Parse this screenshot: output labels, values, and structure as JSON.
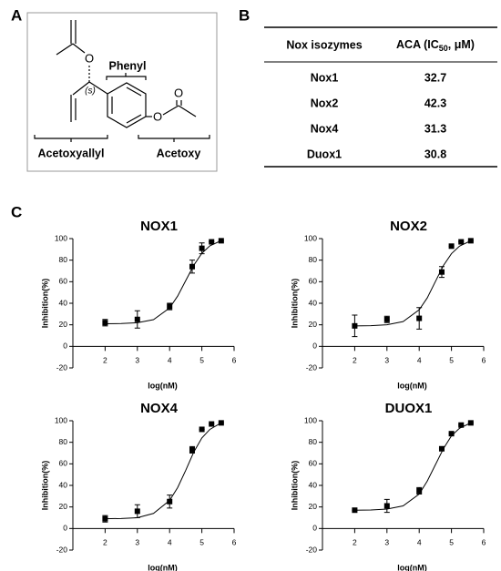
{
  "panels": [
    "A",
    "B",
    "C"
  ],
  "structure": {
    "atoms": [
      "O",
      "O",
      "O"
    ],
    "stereo": "(s)",
    "groups": [
      "Phenyl",
      "Acetoxyallyl",
      "Acetoxy"
    ]
  },
  "table": {
    "columns": [
      "Nox isozymes",
      [
        "ACA (IC",
        "50",
        ", μM)"
      ]
    ],
    "rows": [
      [
        "Nox1",
        32.7
      ],
      [
        "Nox2",
        42.3
      ],
      [
        "Nox4",
        31.3
      ],
      [
        "Duox1",
        30.8
      ]
    ]
  },
  "chart_data": [
    {
      "type": "scatter",
      "title": "NOX1",
      "xlabel": "log(nM)",
      "ylabel": "Inhibition(%)",
      "xlim": [
        1,
        6
      ],
      "ylim": [
        -20,
        100
      ],
      "xticks": [
        2,
        3,
        4,
        5,
        6
      ],
      "yticks": [
        -20,
        0,
        20,
        40,
        60,
        80,
        100
      ],
      "color": "#000000",
      "series": [
        {
          "x": [
            2,
            3,
            4,
            4.7,
            5,
            5.3,
            5.6
          ],
          "values": [
            22,
            25,
            37,
            74,
            91,
            97,
            98
          ],
          "errors": [
            3,
            8,
            3,
            6,
            5,
            0,
            0
          ],
          "marker": "square"
        },
        {
          "x": [
            2,
            2.5,
            3,
            3.5,
            4,
            4.25,
            4.5,
            4.75,
            5,
            5.25,
            5.6
          ],
          "values": [
            21,
            21.2,
            21.9,
            24.8,
            35.6,
            46.7,
            61,
            75.3,
            86.4,
            93.3,
            98.1
          ],
          "line": true
        }
      ]
    },
    {
      "type": "scatter",
      "title": "NOX2",
      "xlabel": "log(nM)",
      "ylabel": "Inhibition(%)",
      "xlim": [
        1,
        6
      ],
      "ylim": [
        -20,
        100
      ],
      "xticks": [
        2,
        3,
        4,
        5,
        6
      ],
      "yticks": [
        -20,
        0,
        20,
        40,
        60,
        80,
        100
      ],
      "color": "#000000",
      "series": [
        {
          "x": [
            2,
            3,
            4,
            4.7,
            5,
            5.3,
            5.6
          ],
          "values": [
            19,
            25,
            26,
            69,
            93,
            97,
            98
          ],
          "errors": [
            10,
            3,
            10,
            5,
            0,
            0,
            0
          ],
          "marker": "square"
        },
        {
          "x": [
            2,
            2.5,
            3,
            3.5,
            4,
            4.25,
            4.5,
            4.75,
            5,
            5.25,
            5.6
          ],
          "values": [
            19,
            19.2,
            20,
            23,
            34,
            45,
            60,
            75,
            86,
            93,
            98
          ],
          "line": true
        }
      ]
    },
    {
      "type": "scatter",
      "title": "NOX4",
      "xlabel": "log(nM)",
      "ylabel": "Inhibition(%)",
      "xlim": [
        1,
        6
      ],
      "ylim": [
        -20,
        100
      ],
      "xticks": [
        2,
        3,
        4,
        5,
        6
      ],
      "yticks": [
        -20,
        0,
        20,
        40,
        60,
        80,
        100
      ],
      "color": "#000000",
      "series": [
        {
          "x": [
            2,
            3,
            4,
            4.7,
            5,
            5.3,
            5.6
          ],
          "values": [
            9,
            16,
            25,
            73,
            92,
            97,
            98
          ],
          "errors": [
            3,
            6,
            6,
            3,
            0,
            0,
            0
          ],
          "marker": "square"
        },
        {
          "x": [
            2,
            2.5,
            3,
            3.5,
            4,
            4.25,
            4.5,
            4.75,
            5,
            5.25,
            5.6
          ],
          "values": [
            9,
            9.3,
            10,
            14,
            26,
            38,
            54,
            71,
            84,
            92,
            98
          ],
          "line": true
        }
      ]
    },
    {
      "type": "scatter",
      "title": "DUOX1",
      "xlabel": "log(nM)",
      "ylabel": "Inhibition(%)",
      "xlim": [
        1,
        6
      ],
      "ylim": [
        -20,
        100
      ],
      "xticks": [
        2,
        3,
        4,
        5,
        6
      ],
      "yticks": [
        -20,
        0,
        20,
        40,
        60,
        80,
        100
      ],
      "color": "#000000",
      "series": [
        {
          "x": [
            2,
            3,
            4,
            4.7,
            5,
            5.3,
            5.6
          ],
          "values": [
            17,
            21,
            35,
            74,
            88,
            96,
            98
          ],
          "errors": [
            0,
            6,
            3,
            0,
            0,
            0,
            0
          ],
          "marker": "square"
        },
        {
          "x": [
            2,
            2.5,
            3,
            3.5,
            4,
            4.25,
            4.5,
            4.75,
            5,
            5.25,
            5.6
          ],
          "values": [
            17,
            17.2,
            18,
            21,
            32,
            44,
            59,
            74,
            86,
            93,
            98
          ],
          "line": true
        }
      ]
    }
  ]
}
